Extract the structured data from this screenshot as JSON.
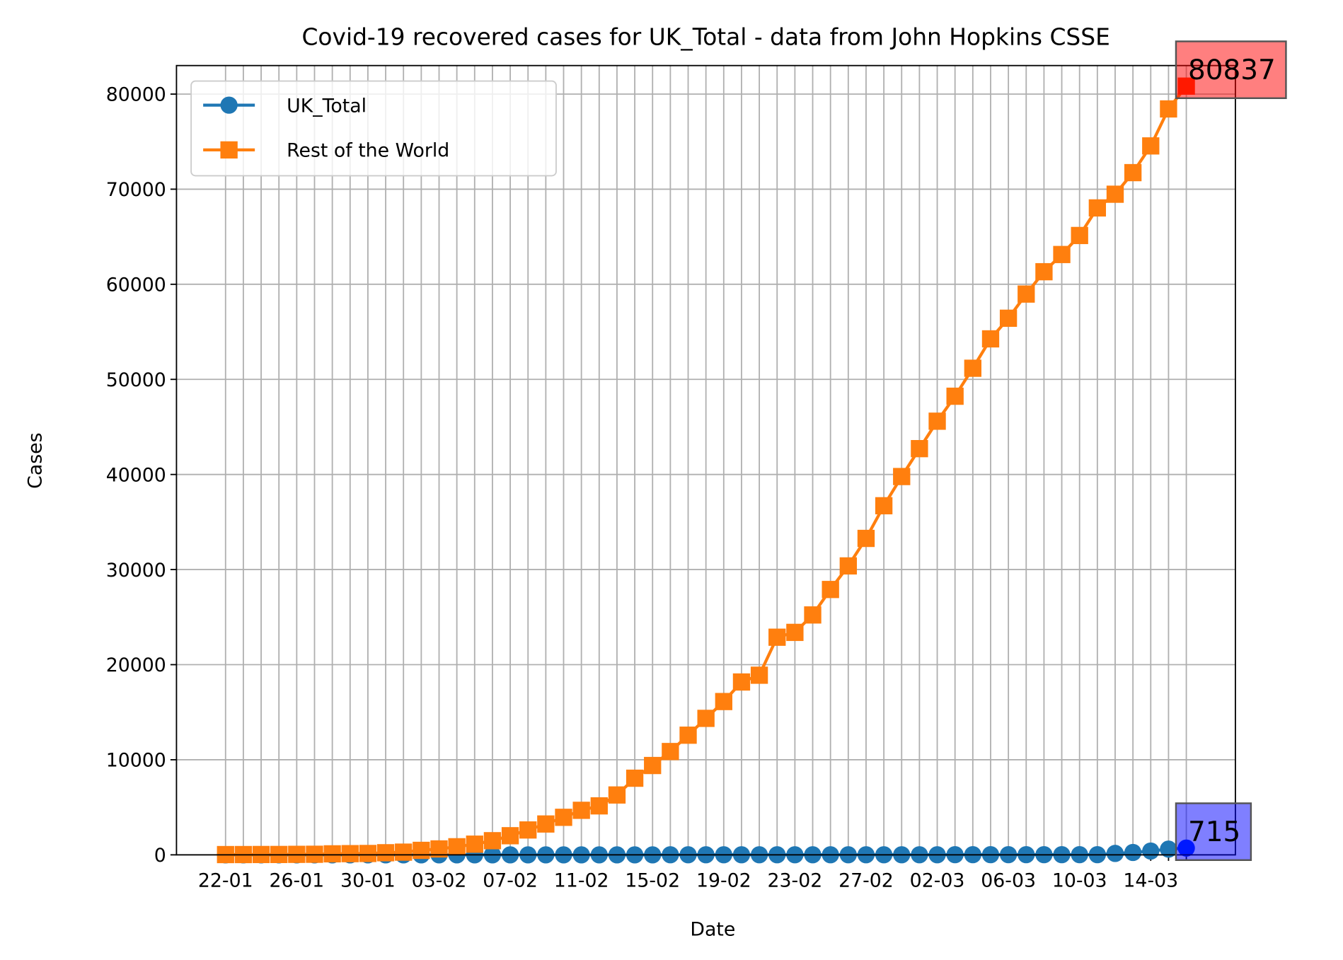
{
  "chart_data": {
    "type": "line",
    "title": "Covid-19 recovered cases for UK_Total - data from John Hopkins CSSE",
    "x_label": "Date",
    "y_label": "Cases",
    "categories": [
      "22-01",
      null,
      null,
      null,
      "26-01",
      null,
      null,
      null,
      "30-01",
      null,
      null,
      null,
      "03-02",
      null,
      null,
      null,
      "07-02",
      null,
      null,
      null,
      "11-02",
      null,
      null,
      null,
      "15-02",
      null,
      null,
      null,
      "19-02",
      null,
      null,
      null,
      "23-02",
      null,
      null,
      null,
      "27-02",
      null,
      null,
      null,
      "02-03",
      null,
      null,
      null,
      "06-03",
      null,
      null,
      null,
      "10-03",
      null,
      null,
      null,
      "14-03",
      null,
      null
    ],
    "series": [
      {
        "name": "UK_Total",
        "color": "#1f77b4",
        "highlight_color": "#0033ff",
        "marker": "circle",
        "annotation_color": "#0000ff",
        "values": [
          0,
          0,
          0,
          0,
          0,
          0,
          0,
          0,
          0,
          0,
          0,
          0,
          0,
          0,
          0,
          0,
          0,
          0,
          0,
          0,
          0,
          0,
          0,
          0,
          0,
          8,
          8,
          8,
          8,
          8,
          8,
          8,
          8,
          8,
          8,
          8,
          8,
          8,
          8,
          8,
          8,
          18,
          18,
          18,
          18,
          18,
          18,
          18,
          18,
          18,
          150,
          250,
          400,
          600,
          715
        ]
      },
      {
        "name": "Rest of the World",
        "color": "#ff7f0e",
        "highlight_color": "#ff3300",
        "marker": "square",
        "annotation_color": "#ff0000",
        "values": [
          28,
          30,
          36,
          39,
          52,
          61,
          107,
          126,
          143,
          222,
          284,
          472,
          623,
          852,
          1124,
          1487,
          2011,
          2616,
          3244,
          3946,
          4683,
          5150,
          6295,
          8058,
          9395,
          10865,
          12583,
          14352,
          16121,
          18177,
          18890,
          22886,
          23394,
          25227,
          27905,
          30384,
          33277,
          36711,
          39782,
          42716,
          45602,
          48228,
          51170,
          54260,
          56430,
          58970,
          61320,
          63130,
          65130,
          68030,
          69470,
          71740,
          74550,
          78440,
          80837
        ]
      }
    ],
    "ylim": [
      0,
      83000
    ],
    "yticks": [
      0,
      10000,
      20000,
      30000,
      40000,
      50000,
      60000,
      70000,
      80000
    ],
    "grid": true,
    "legend": "upper left"
  }
}
